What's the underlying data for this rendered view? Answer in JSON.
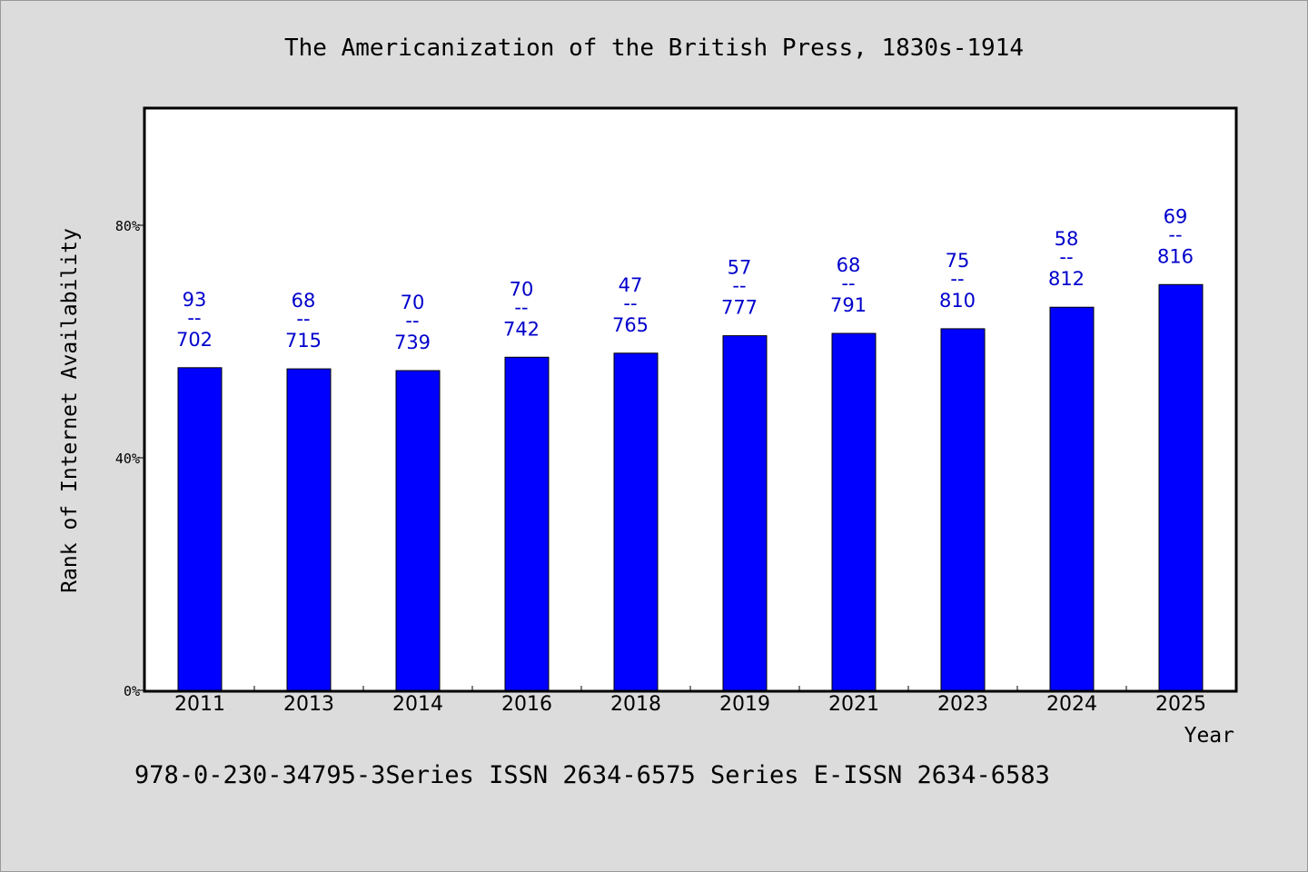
{
  "colors": {
    "background": "#dcdcdc",
    "plot_background": "#ffffff",
    "bar_fill": "#0000ff",
    "label_color": "#0000cc",
    "axis_color": "#000000"
  },
  "footer": "978-0-230-34795-3Series ISSN 2634-6575 Series E-ISSN 2634-6583",
  "chart_data": {
    "type": "bar",
    "title": "The Americanization of the British Press, 1830s-1914",
    "xlabel": "Year",
    "ylabel": "Rank of Internet Availability",
    "categories": [
      "2011",
      "2013",
      "2014",
      "2016",
      "2018",
      "2019",
      "2021",
      "2023",
      "2024",
      "2025"
    ],
    "values": [
      55.5,
      55.3,
      55.0,
      57.3,
      58.0,
      61.0,
      61.4,
      62.2,
      65.9,
      69.8
    ],
    "value_unit": "%",
    "data_labels": [
      {
        "top": "93",
        "sep": "--",
        "bottom": "702"
      },
      {
        "top": "68",
        "sep": "--",
        "bottom": "715"
      },
      {
        "top": "70",
        "sep": "--",
        "bottom": "739"
      },
      {
        "top": "70",
        "sep": "--",
        "bottom": "742"
      },
      {
        "top": "47",
        "sep": "--",
        "bottom": "765"
      },
      {
        "top": "57",
        "sep": "--",
        "bottom": "777"
      },
      {
        "top": "68",
        "sep": "--",
        "bottom": "791"
      },
      {
        "top": "75",
        "sep": "--",
        "bottom": "810"
      },
      {
        "top": "58",
        "sep": "--",
        "bottom": "812"
      },
      {
        "top": "69",
        "sep": "--",
        "bottom": "816"
      }
    ],
    "ylim": [
      0,
      100
    ],
    "yticks": [
      0,
      40,
      80
    ],
    "ytick_labels": [
      "0%",
      "40%",
      "80%"
    ],
    "grid": false,
    "legend": "none"
  }
}
